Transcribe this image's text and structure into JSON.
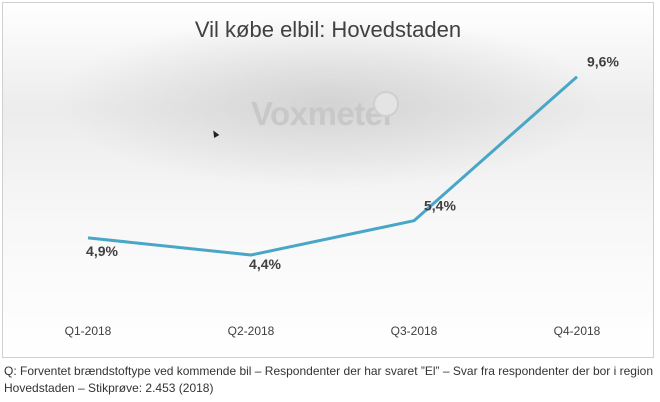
{
  "chart_data": {
    "type": "line",
    "title": "Vil købe elbil: Hovedstaden",
    "categories": [
      "Q1-2018",
      "Q2-2018",
      "Q3-2018",
      "Q4-2018"
    ],
    "values": [
      4.9,
      4.4,
      5.4,
      9.6
    ],
    "data_labels": [
      "4,9%",
      "4,4%",
      "5,4%",
      "9,6%"
    ],
    "ylim": [
      3,
      10
    ],
    "grid": false,
    "line_color": "#4aa6c7"
  },
  "watermark": "Voxmeter",
  "footnote": "Q: Forventet brændstoftype ved kommende bil – Respondenter der har svaret ”El” – Svar fra respondenter der bor i region Hovedstaden – Stikprøve: 2.453 (2018)"
}
